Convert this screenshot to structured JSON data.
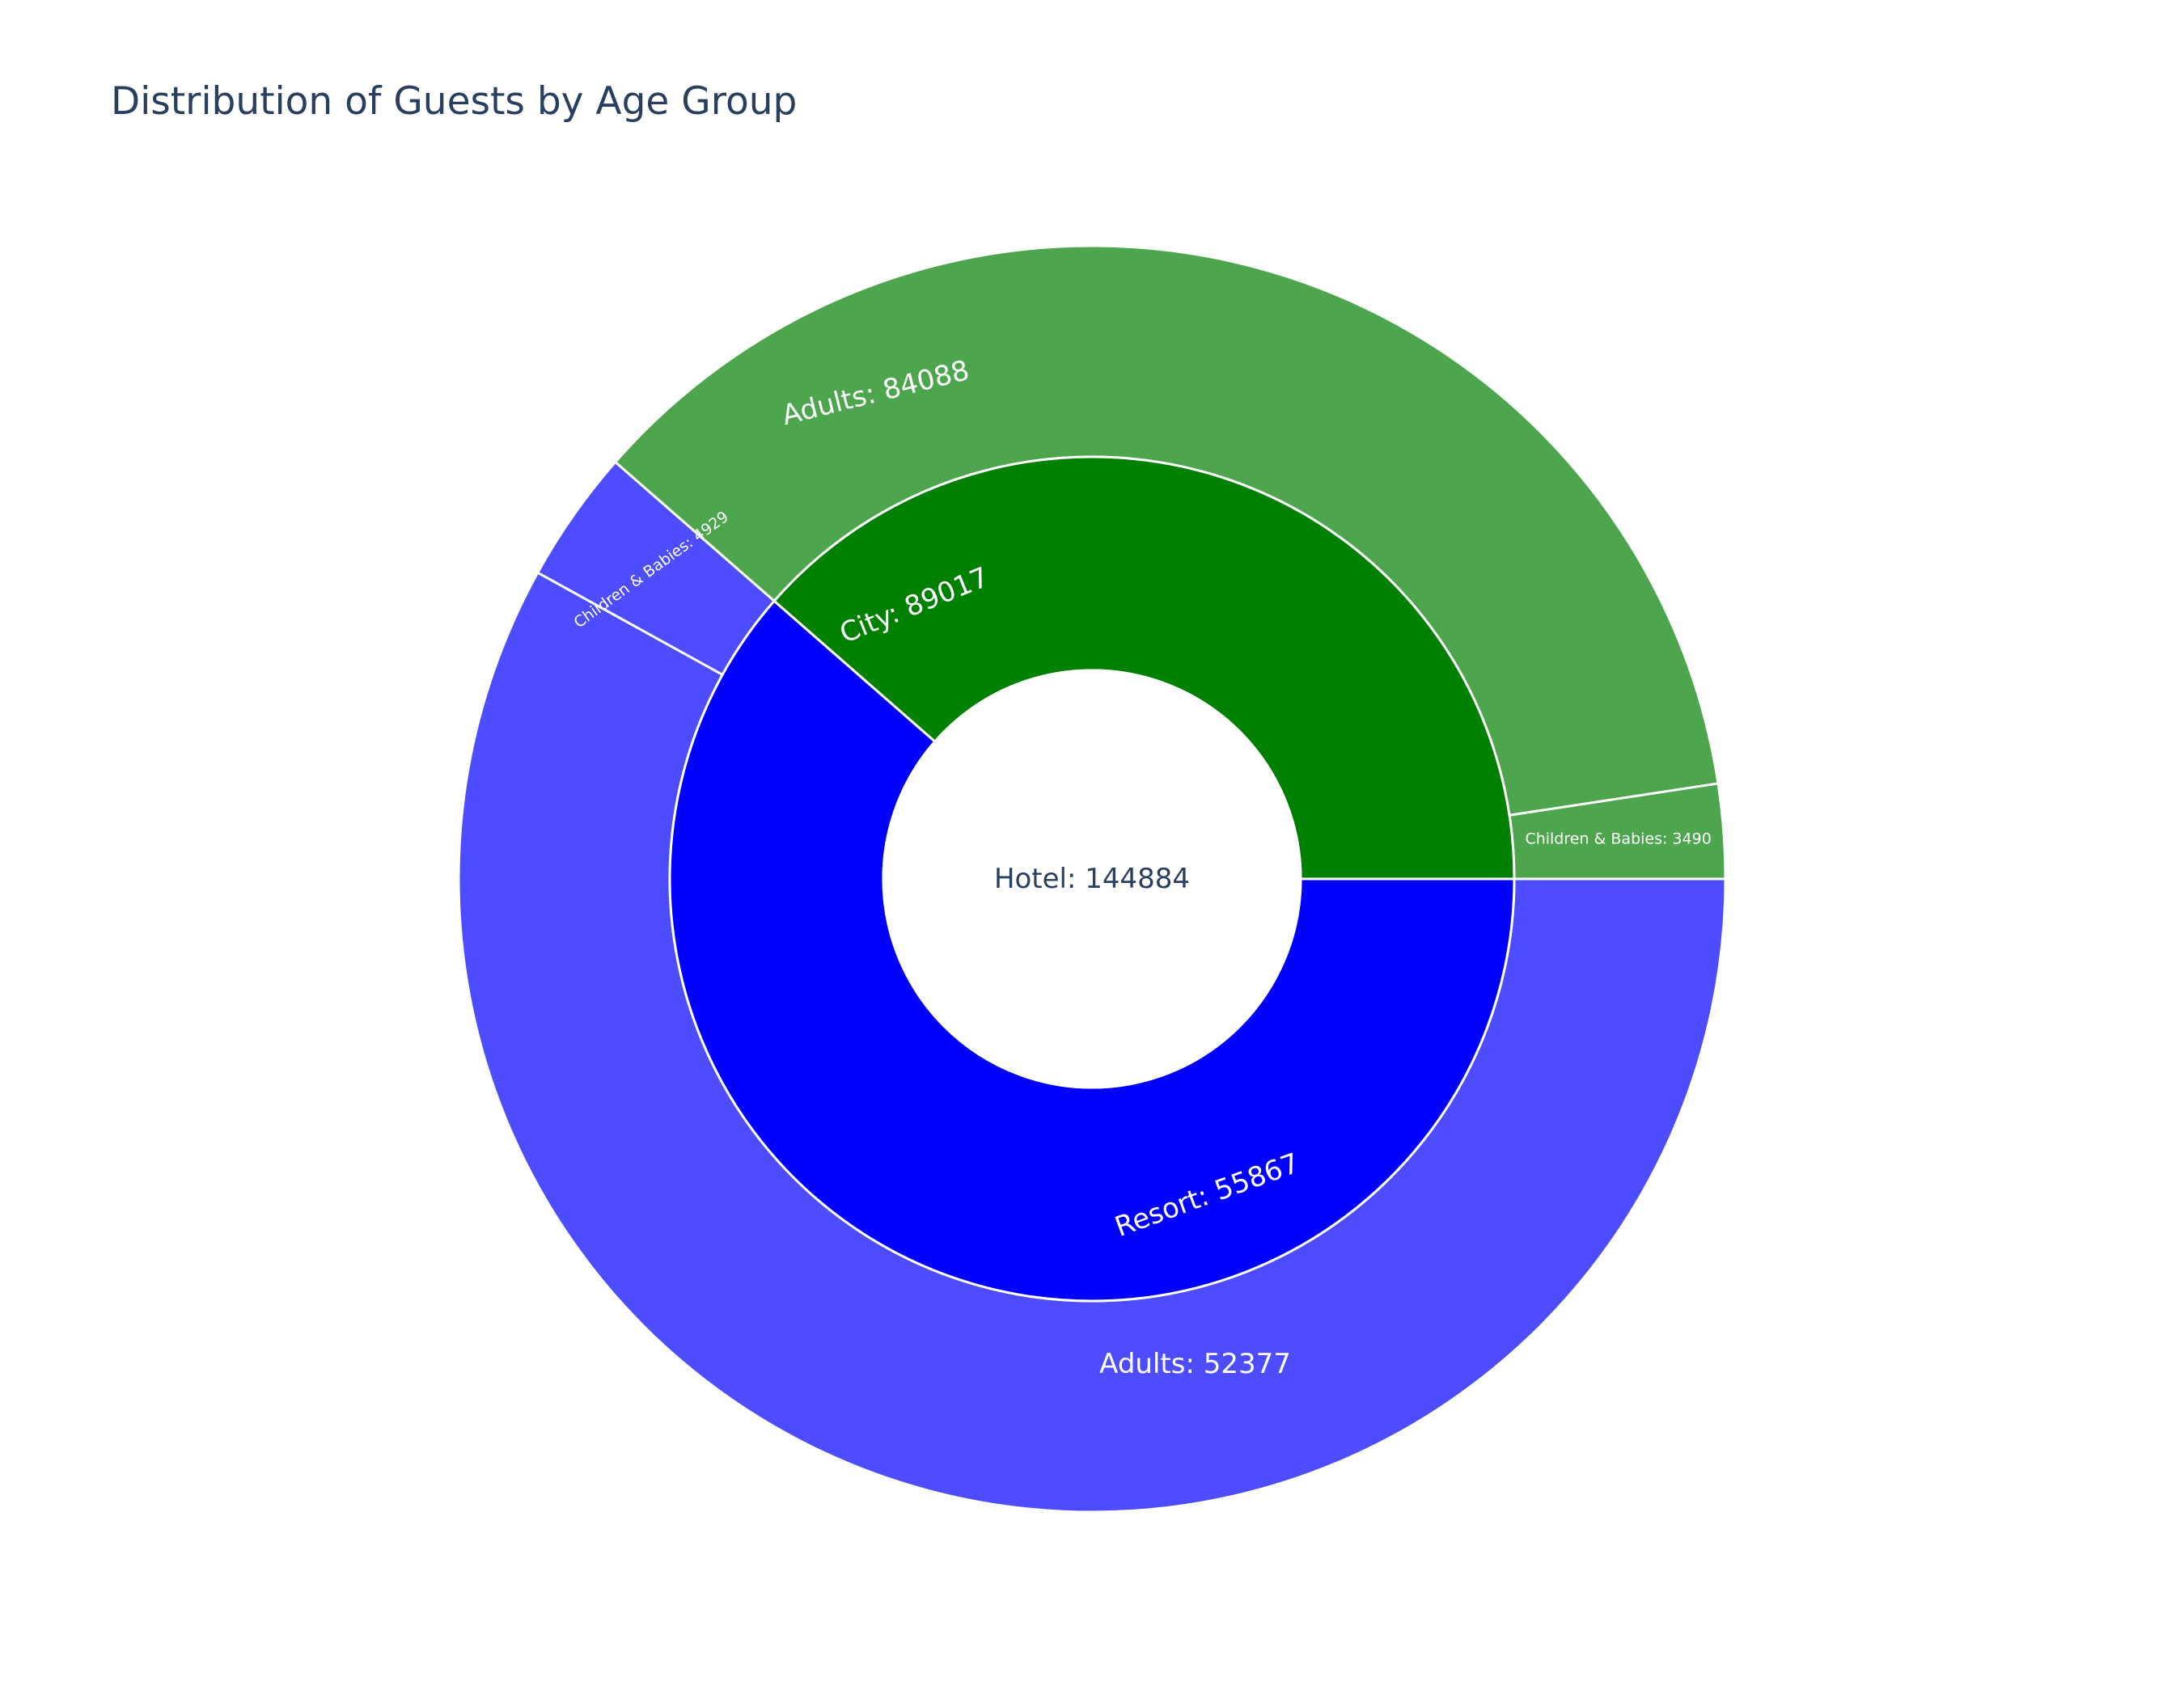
{
  "chart_data": {
    "type": "sunburst",
    "title": "Distribution of Guests by Age Group",
    "root": {
      "label": "Hotel",
      "value": 144884,
      "text": "Hotel: 144884"
    },
    "children": [
      {
        "label": "City",
        "value": 89017,
        "text": "City: 89017",
        "color": "#0000ff",
        "children": [
          {
            "label": "Adults",
            "value": 84088,
            "text": "Adults: 84088",
            "color": "#4d4dff"
          },
          {
            "label": "Children & Babies",
            "value": 4929,
            "text": "Children & Babies: 4929",
            "color": "#4d4dff"
          }
        ]
      },
      {
        "label": "Resort",
        "value": 55867,
        "text": "Resort: 55867",
        "color": "#008000",
        "children": [
          {
            "label": "Adults",
            "value": 52377,
            "text": "Adults: 52377",
            "color": "#4da64d"
          },
          {
            "label": "Children & Babies",
            "value": 3490,
            "text": "Children & Babies: 3490",
            "color": "#4da64d"
          }
        ]
      }
    ],
    "colors": {
      "root_text": "#2a3f5f",
      "segment_text": "#ffffff",
      "stroke": "#ffffff",
      "title": "#2a3f5f"
    }
  }
}
